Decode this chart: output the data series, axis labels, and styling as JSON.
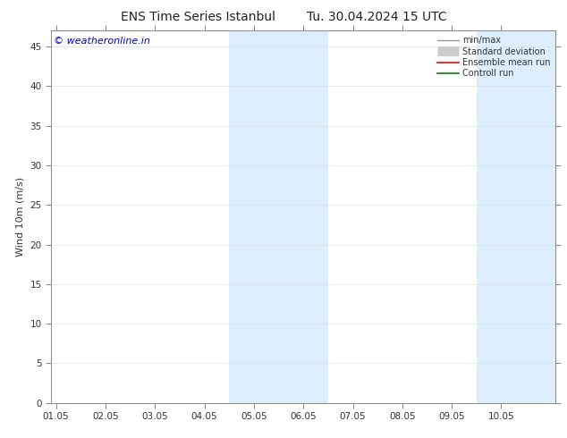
{
  "title": "ENS Time Series Istanbul",
  "title2": "Tu. 30.04.2024 15 UTC",
  "ylabel": "Wind 10m (m/s)",
  "watermark": "© weatheronline.in",
  "watermark_color": "#0000dd",
  "xlim_start": -0.1,
  "xlim_end": 10.1,
  "ylim_min": 0,
  "ylim_max": 47,
  "yticks": [
    0,
    5,
    10,
    15,
    20,
    25,
    30,
    35,
    40,
    45
  ],
  "xtick_labels": [
    "01.05",
    "02.05",
    "03.05",
    "04.05",
    "05.05",
    "06.05",
    "07.05",
    "08.05",
    "09.05",
    "10.05"
  ],
  "xtick_positions": [
    0,
    1,
    2,
    3,
    4,
    5,
    6,
    7,
    8,
    9
  ],
  "shaded_regions": [
    {
      "xmin": 3.5,
      "xmax": 5.5,
      "color": "#ddeeff"
    },
    {
      "xmin": 8.5,
      "xmax": 10.1,
      "color": "#ddeeff"
    }
  ],
  "legend_items": [
    {
      "label": "min/max",
      "color": "#999999",
      "lw": 1.0
    },
    {
      "label": "Standard deviation",
      "color": "#cccccc",
      "lw": 8
    },
    {
      "label": "Ensemble mean run",
      "color": "#ff0000",
      "lw": 1.2
    },
    {
      "label": "Controll run",
      "color": "#008800",
      "lw": 1.2
    }
  ],
  "bg_color": "#ffffff",
  "spine_color": "#888888",
  "title_fontsize": 10,
  "axis_fontsize": 7.5,
  "ylabel_fontsize": 8,
  "legend_fontsize": 7,
  "watermark_fontsize": 8
}
